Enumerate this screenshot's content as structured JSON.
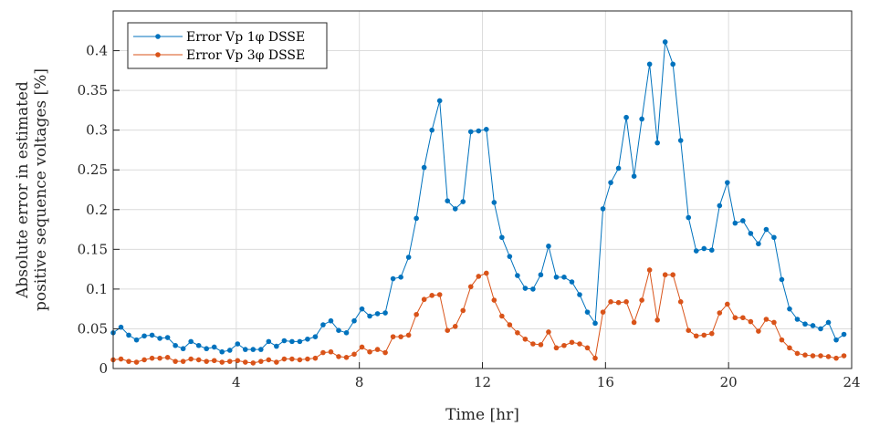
{
  "chart_data": {
    "type": "line",
    "xlabel": "Time [hr]",
    "ylabel_lines": [
      "Absolute error in estimated",
      "positive sequence voltages [%]"
    ],
    "xlim": [
      0,
      24
    ],
    "ylim": [
      0,
      0.45
    ],
    "xticks": [
      4,
      8,
      12,
      16,
      20,
      24
    ],
    "yticks": [
      0,
      0.05,
      0.1,
      0.15,
      0.2,
      0.25,
      0.3,
      0.35,
      0.4
    ],
    "ytick_labels": [
      "0",
      "0.05",
      "0.1",
      "0.15",
      "0.2",
      "0.25",
      "0.3",
      "0.35",
      "0.4"
    ],
    "grid": true,
    "legend_position": "top-left",
    "series": [
      {
        "name": "Error Vp 1φ DSSE",
        "color": "#0072BD",
        "values": [
          0.045,
          0.052,
          0.042,
          0.036,
          0.041,
          0.042,
          0.038,
          0.039,
          0.029,
          0.025,
          0.034,
          0.029,
          0.025,
          0.027,
          0.021,
          0.023,
          0.031,
          0.024,
          0.024,
          0.024,
          0.034,
          0.028,
          0.035,
          0.034,
          0.034,
          0.037,
          0.04,
          0.055,
          0.06,
          0.048,
          0.045,
          0.06,
          0.075,
          0.066,
          0.069,
          0.07,
          0.113,
          0.115,
          0.14,
          0.189,
          0.253,
          0.3,
          0.337,
          0.211,
          0.201,
          0.21,
          0.298,
          0.299,
          0.301,
          0.209,
          0.165,
          0.141,
          0.117,
          0.101,
          0.1,
          0.118,
          0.154,
          0.115,
          0.115,
          0.109,
          0.093,
          0.071,
          0.057,
          0.201,
          0.234,
          0.252,
          0.316,
          0.242,
          0.314,
          0.383,
          0.284,
          0.411,
          0.383,
          0.287,
          0.19,
          0.148,
          0.151,
          0.149,
          0.205,
          0.234,
          0.183,
          0.186,
          0.17,
          0.157,
          0.175,
          0.165,
          0.112,
          0.075,
          0.062,
          0.056,
          0.054,
          0.05,
          0.058,
          0.036,
          0.043
        ]
      },
      {
        "name": "Error Vp 3φ DSSE",
        "color": "#D95319",
        "values": [
          0.011,
          0.012,
          0.009,
          0.008,
          0.011,
          0.013,
          0.013,
          0.014,
          0.009,
          0.009,
          0.012,
          0.011,
          0.009,
          0.01,
          0.008,
          0.009,
          0.01,
          0.008,
          0.007,
          0.009,
          0.011,
          0.008,
          0.012,
          0.012,
          0.011,
          0.012,
          0.013,
          0.02,
          0.021,
          0.015,
          0.014,
          0.018,
          0.027,
          0.021,
          0.024,
          0.02,
          0.04,
          0.04,
          0.042,
          0.068,
          0.087,
          0.092,
          0.093,
          0.048,
          0.053,
          0.073,
          0.103,
          0.116,
          0.12,
          0.086,
          0.066,
          0.055,
          0.045,
          0.037,
          0.031,
          0.03,
          0.046,
          0.026,
          0.029,
          0.033,
          0.031,
          0.026,
          0.013,
          0.071,
          0.084,
          0.083,
          0.084,
          0.058,
          0.086,
          0.124,
          0.061,
          0.118,
          0.118,
          0.084,
          0.048,
          0.041,
          0.042,
          0.044,
          0.07,
          0.081,
          0.064,
          0.064,
          0.059,
          0.047,
          0.062,
          0.058,
          0.036,
          0.026,
          0.019,
          0.017,
          0.016,
          0.016,
          0.015,
          0.013,
          0.016
        ]
      }
    ]
  }
}
